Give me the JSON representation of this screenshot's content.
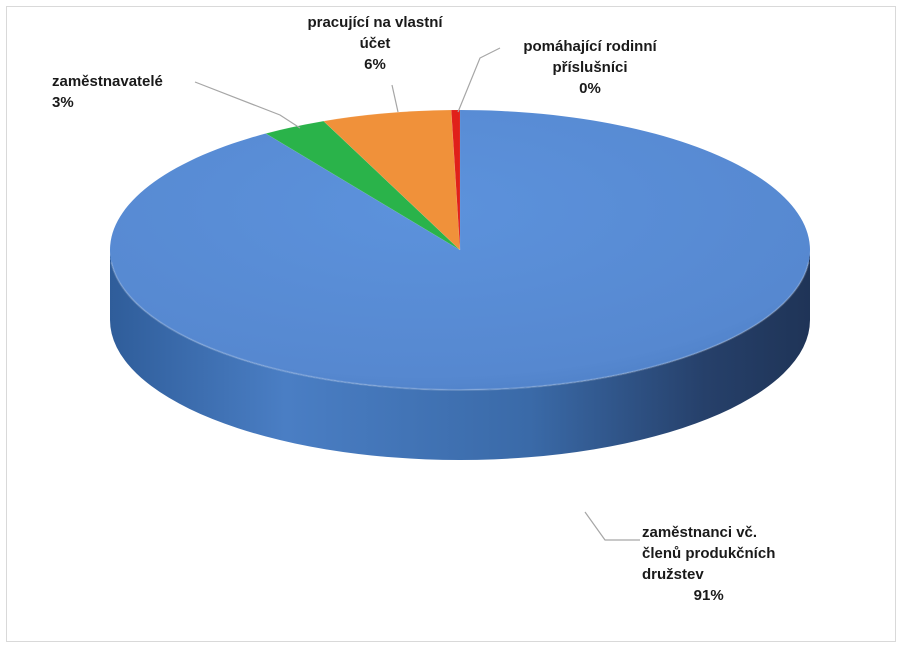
{
  "chart_data": {
    "type": "pie",
    "style": "3d",
    "title": "",
    "legend": "none",
    "slices": [
      {
        "label_lines": [
          "zaměstnanci vč.",
          "členů produkčních",
          "družstev"
        ],
        "value_text": "91%",
        "value": 91,
        "color": "#5b8ed6"
      },
      {
        "label_lines": [
          "zaměstnavatelé"
        ],
        "value_text": "3%",
        "value": 3,
        "color": "#2ab34a"
      },
      {
        "label_lines": [
          "pracující na vlastní",
          "účet"
        ],
        "value_text": "6%",
        "value": 6,
        "color": "#f0913a"
      },
      {
        "label_lines": [
          "pomáhající rodinní",
          "příslušníci"
        ],
        "value_text": "0%",
        "value": 0.4,
        "color": "#e0201a"
      }
    ]
  }
}
